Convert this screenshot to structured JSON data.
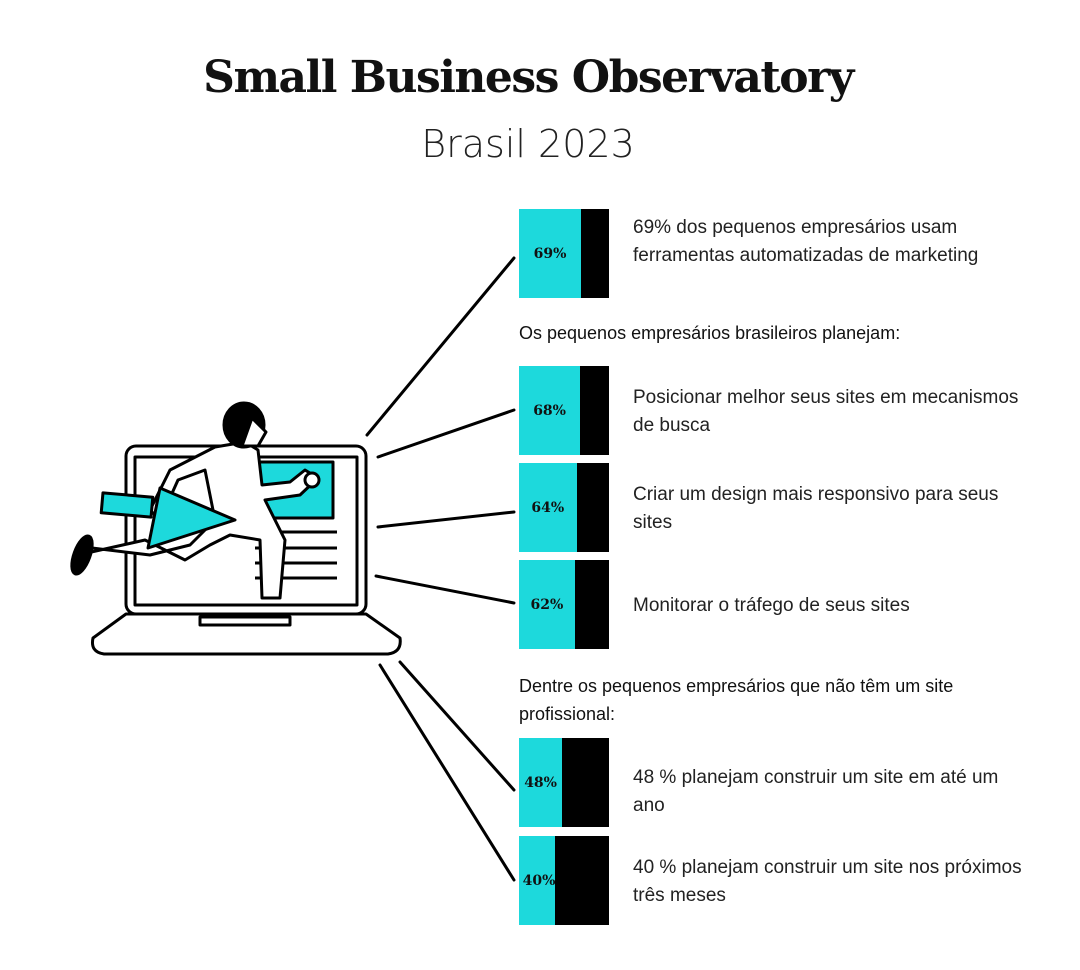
{
  "header": {
    "title": "Small Business Observatory",
    "subtitle": "Brasil 2023"
  },
  "colors": {
    "accent": "#1dd9dc",
    "remainder": "#000000"
  },
  "headings": [
    "Os pequenos empresários brasileiros planejam:",
    "Dentre os pequenos empresários que não têm um site profissional:"
  ],
  "chart_data": {
    "type": "bar",
    "orientation": "horizontal stacked percentage",
    "categories": [
      "69% dos pequenos empresários usam ferramentas automatizadas de marketing",
      "Posicionar melhor seus sites em mecanismos de busca",
      "Criar um design mais responsivo para seus sites",
      "Monitorar o tráfego de seus sites",
      "48 % planejam construir um site em até um ano",
      "40 % planejam construir um site nos próximos três meses"
    ],
    "values": [
      69,
      68,
      64,
      62,
      48,
      40
    ],
    "labels": [
      "69%",
      "68%",
      "64%",
      "62%",
      "48%",
      "40%"
    ],
    "ylim": [
      0,
      100
    ]
  }
}
